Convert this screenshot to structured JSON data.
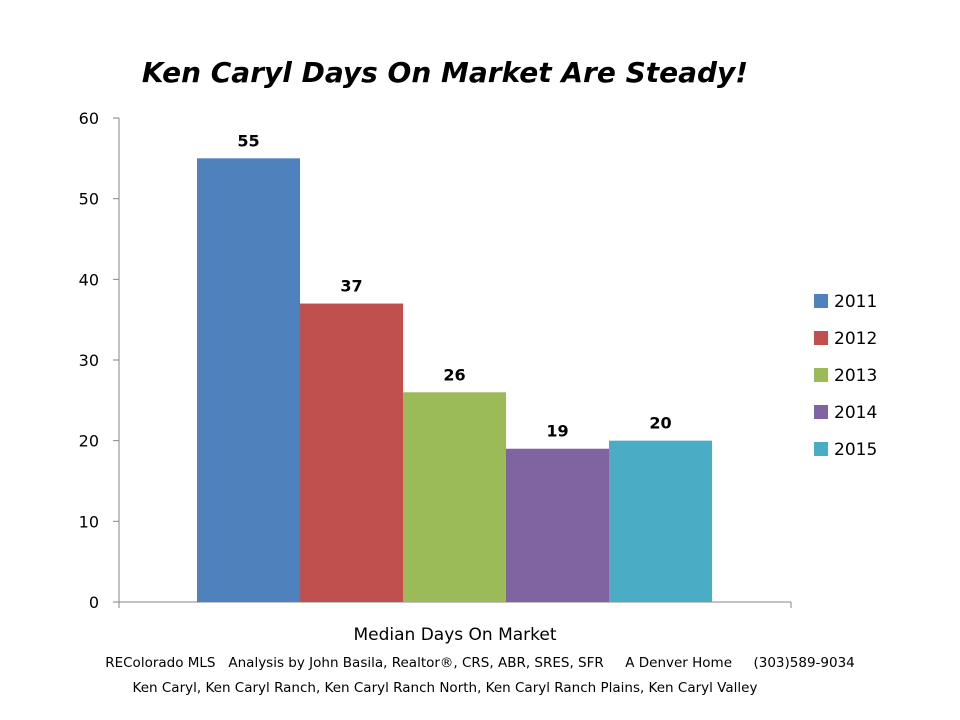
{
  "chart_data": {
    "type": "bar",
    "title": "Ken Caryl Days On Market Are Steady!",
    "categories": [
      "Median Days On Market"
    ],
    "series": [
      {
        "name": "2011",
        "values": [
          55
        ],
        "color": "#4F81BD"
      },
      {
        "name": "2012",
        "values": [
          37
        ],
        "color": "#C0504D"
      },
      {
        "name": "2013",
        "values": [
          26
        ],
        "color": "#9BBB59"
      },
      {
        "name": "2014",
        "values": [
          19
        ],
        "color": "#8064A2"
      },
      {
        "name": "2015",
        "values": [
          20
        ],
        "color": "#4BACC6"
      }
    ],
    "ylim": [
      0,
      60
    ],
    "yticks": [
      "0",
      "10",
      "20",
      "30",
      "40",
      "50",
      "60"
    ],
    "xlabel": "",
    "ylabel": "",
    "grid": false,
    "legend_position": "right"
  },
  "footer": {
    "line1": "REColorado MLS   Analysis by John Basila, Realtor®, CRS, ABR, SRES, SFR     A Denver Home     (303)589-9034",
    "line2": "Ken Caryl, Ken Caryl Ranch, Ken Caryl Ranch North, Ken Caryl Ranch Plains, Ken Caryl Valley"
  }
}
